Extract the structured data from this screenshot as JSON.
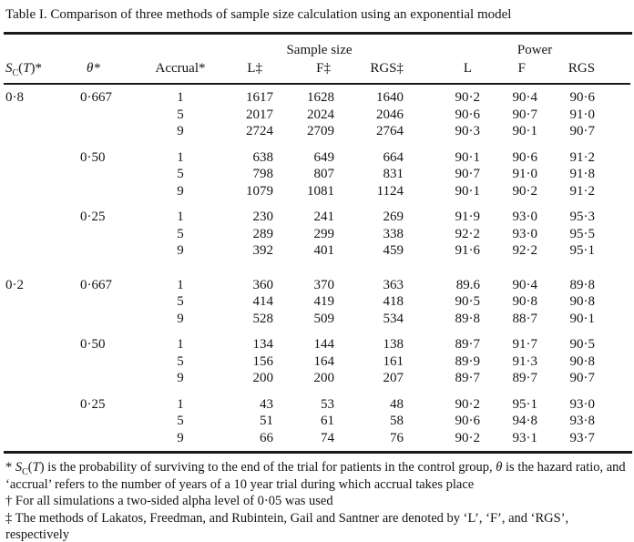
{
  "title": "Table I. Comparison of three methods of sample size calculation using an exponential model",
  "colors": {
    "background": "#ffffff",
    "ink": "#141414",
    "rule": "#1a1a1a"
  },
  "table": {
    "group_headers": {
      "sample_size": "Sample size",
      "power": "Power"
    },
    "headers": {
      "sc": {
        "s": "S",
        "sub": "C",
        "open": "(",
        "t": "T",
        "close": ")*"
      },
      "theta": "θ*",
      "accrual": "Accrual*",
      "ss_l": "L‡",
      "ss_f": "F‡",
      "ss_rgs": "RGS‡",
      "p_l": "L",
      "p_f": "F",
      "p_rgs": "RGS"
    },
    "column_keys": [
      "sc",
      "theta",
      "accrual",
      "sample-l",
      "sample-f",
      "sample-rgs",
      "power-l",
      "power-f",
      "power-rgs",
      "spacer"
    ],
    "blocks": [
      {
        "sc": "0·8",
        "groups": [
          {
            "theta": "0·667",
            "rows": [
              [
                "1",
                "1617",
                "1628",
                "1640",
                "90·2",
                "90·4",
                "90·6"
              ],
              [
                "5",
                "2017",
                "2024",
                "2046",
                "90·6",
                "90·7",
                "91·0"
              ],
              [
                "9",
                "2724",
                "2709",
                "2764",
                "90·3",
                "90·1",
                "90·7"
              ]
            ]
          },
          {
            "theta": "0·50",
            "rows": [
              [
                "1",
                "638",
                "649",
                "664",
                "90·1",
                "90·6",
                "91·2"
              ],
              [
                "5",
                "798",
                "807",
                "831",
                "90·7",
                "91·0",
                "91·8"
              ],
              [
                "9",
                "1079",
                "1081",
                "1124",
                "90·1",
                "90·2",
                "91·2"
              ]
            ]
          },
          {
            "theta": "0·25",
            "rows": [
              [
                "1",
                "230",
                "241",
                "269",
                "91·9",
                "93·0",
                "95·3"
              ],
              [
                "5",
                "289",
                "299",
                "338",
                "92·2",
                "93·0",
                "95·5"
              ],
              [
                "9",
                "392",
                "401",
                "459",
                "91·6",
                "92·2",
                "95·1"
              ]
            ]
          }
        ]
      },
      {
        "sc": "0·2",
        "groups": [
          {
            "theta": "0·667",
            "rows": [
              [
                "1",
                "360",
                "370",
                "363",
                "89.6",
                "90·4",
                "89·8"
              ],
              [
                "5",
                "414",
                "419",
                "418",
                "90·5",
                "90·8",
                "90·8"
              ],
              [
                "9",
                "528",
                "509",
                "534",
                "89·8",
                "88·7",
                "90·1"
              ]
            ]
          },
          {
            "theta": "0·50",
            "rows": [
              [
                "1",
                "134",
                "144",
                "138",
                "89·7",
                "91·7",
                "90·5"
              ],
              [
                "5",
                "156",
                "164",
                "161",
                "89·9",
                "91·3",
                "90·8"
              ],
              [
                "9",
                "200",
                "200",
                "207",
                "89·7",
                "89·7",
                "90·7"
              ]
            ]
          },
          {
            "theta": "0·25",
            "rows": [
              [
                "1",
                "43",
                "53",
                "48",
                "90·2",
                "95·1",
                "93·0"
              ],
              [
                "5",
                "51",
                "61",
                "58",
                "90·6",
                "94·8",
                "93·8"
              ],
              [
                "9",
                "66",
                "74",
                "76",
                "90·2",
                "93·1",
                "93·7"
              ]
            ]
          }
        ]
      }
    ]
  },
  "footnotes": {
    "fn1": {
      "marker": "*",
      "s": "S",
      "sub": "C",
      "open": "(",
      "t": "T",
      "rest1": ") is the probability of surviving to the end of the trial for patients in the control group, ",
      "theta": "θ",
      "rest2": " is the hazard ratio, and ‘accrual’ refers to the number of years of a 10 year trial during which accrual takes place"
    },
    "fn2": {
      "marker": "†",
      "text": "For all simulations a two-sided alpha level of 0·05 was used"
    },
    "fn3": {
      "marker": "‡",
      "text": "The methods of Lakatos, Freedman, and Rubintein, Gail and Santner are denoted by ‘L’, ‘F’, and ‘RGS’, respectively"
    }
  }
}
